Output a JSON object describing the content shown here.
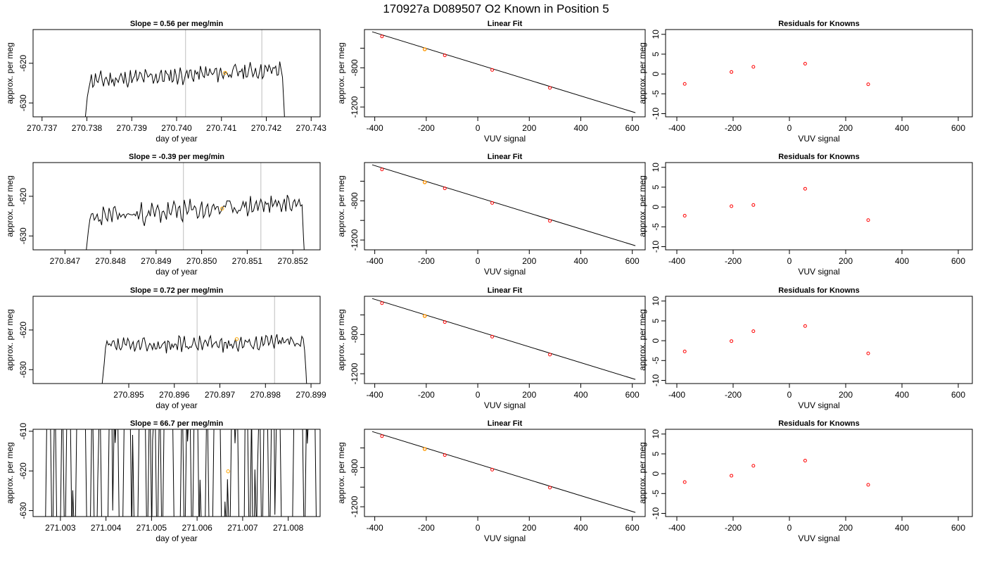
{
  "figure_title": "170927a      D089507   O2 Known in Position  5",
  "colors": {
    "trace": "#000000",
    "orange": "#FFA500",
    "red": "#FF0000",
    "grey": "#BEBEBE"
  },
  "chart_data": [
    {
      "type": "line",
      "title": "Slope =  0.56  per meg/min",
      "xlabel": "day of year",
      "ylabel": "approx. per meg",
      "xlim": [
        270.7368,
        270.7432
      ],
      "ylim": [
        -633.5,
        -611.5
      ],
      "xticks": [
        270.737,
        270.738,
        270.739,
        270.74,
        270.741,
        270.742,
        270.743
      ],
      "xtick_labels": [
        "270.737",
        "270.738",
        "270.739",
        "270.740",
        "270.741",
        "270.742",
        "270.743"
      ],
      "yticks": [
        -630,
        -620
      ],
      "ytick_labels": [
        "-630",
        "-620"
      ],
      "vlines": [
        270.7402,
        270.7419
      ],
      "trace": {
        "x_start": 270.73795,
        "x_end": 270.74245,
        "base": -623,
        "spread": 1.6,
        "trend": 3.0,
        "seed": 11
      },
      "marker": {
        "x": 270.74108,
        "y": -622.4
      }
    },
    {
      "type": "scatter",
      "title": "Linear Fit",
      "xlabel": "VUV signal",
      "ylabel": "approx. per meg",
      "xlim": [
        -440,
        650
      ],
      "ylim": [
        -1300,
        -410
      ],
      "xticks": [
        -400,
        -200,
        0,
        200,
        400,
        600
      ],
      "xtick_labels": [
        "-400",
        "-200",
        "0",
        "200",
        "400",
        "600"
      ],
      "yticks": [
        -1200,
        -1000,
        -800,
        -600
      ],
      "ytick_labels": [
        "-1200",
        "",
        "-800",
        ""
      ],
      "line": [
        [
          -410,
          -433
        ],
        [
          612,
          -1258
        ]
      ],
      "points": [
        [
          -372,
          -480
        ],
        [
          -206,
          -611
        ],
        [
          -128,
          -673
        ],
        [
          56,
          -822
        ],
        [
          280,
          -1005
        ]
      ],
      "orange_points": [
        [
          -206,
          -611
        ]
      ]
    },
    {
      "type": "scatter",
      "title": "Residuals for Knowns",
      "xlabel": "VUV signal",
      "ylabel": "approx. per meg",
      "xlim": [
        -440,
        650
      ],
      "ylim": [
        -10.8,
        11.2
      ],
      "xticks": [
        -400,
        -200,
        0,
        200,
        400,
        600
      ],
      "xtick_labels": [
        "-400",
        "-200",
        "0",
        "200",
        "400",
        "600"
      ],
      "yticks": [
        -10,
        -5,
        0,
        5,
        10
      ],
      "ytick_labels": [
        "-10",
        "-5",
        "0",
        "5",
        "10"
      ],
      "points": [
        [
          -372,
          -2.5
        ],
        [
          -206,
          0.5
        ],
        [
          -128,
          1.8
        ],
        [
          56,
          2.6
        ],
        [
          280,
          -2.6
        ]
      ]
    },
    {
      "type": "line",
      "title": "Slope =  -0.39  per meg/min",
      "xlabel": "day of year",
      "ylabel": "approx. per meg",
      "xlim": [
        270.8463,
        270.8526
      ],
      "ylim": [
        -633.5,
        -611.5
      ],
      "xticks": [
        270.847,
        270.848,
        270.849,
        270.85,
        270.851,
        270.852
      ],
      "xtick_labels": [
        "270.847",
        "270.848",
        "270.849",
        "270.850",
        "270.851",
        "270.852"
      ],
      "yticks": [
        -630,
        -620
      ],
      "ytick_labels": [
        "-630",
        "-620"
      ],
      "vlines": [
        270.8496,
        270.8513
      ],
      "trace": {
        "x_start": 270.84745,
        "x_end": 270.8523,
        "base": -623.5,
        "spread": 2.0,
        "trend": 4.0,
        "seed": 23
      },
      "marker": {
        "x": 270.85045,
        "y": -623.1
      }
    },
    {
      "type": "scatter",
      "title": "Linear Fit",
      "xlabel": "VUV signal",
      "ylabel": "approx. per meg",
      "xlim": [
        -440,
        650
      ],
      "ylim": [
        -1300,
        -410
      ],
      "xticks": [
        -400,
        -200,
        0,
        200,
        400,
        600
      ],
      "xtick_labels": [
        "-400",
        "-200",
        "0",
        "200",
        "400",
        "600"
      ],
      "yticks": [
        -1200,
        -1000,
        -800,
        -600
      ],
      "ytick_labels": [
        "-1200",
        "",
        "-800",
        ""
      ],
      "line": [
        [
          -410,
          -433
        ],
        [
          612,
          -1258
        ]
      ],
      "points": [
        [
          -372,
          -480
        ],
        [
          -206,
          -611
        ],
        [
          -128,
          -673
        ],
        [
          56,
          -822
        ],
        [
          280,
          -1005
        ]
      ],
      "orange_points": [
        [
          -206,
          -611
        ]
      ]
    },
    {
      "type": "scatter",
      "title": "Residuals for Knowns",
      "xlabel": "VUV signal",
      "ylabel": "approx. per meg",
      "xlim": [
        -440,
        650
      ],
      "ylim": [
        -10.8,
        11.2
      ],
      "xticks": [
        -400,
        -200,
        0,
        200,
        400,
        600
      ],
      "xtick_labels": [
        "-400",
        "-200",
        "0",
        "200",
        "400",
        "600"
      ],
      "yticks": [
        -10,
        -5,
        0,
        5,
        10
      ],
      "ytick_labels": [
        "-10",
        "-5",
        "0",
        "5",
        "10"
      ],
      "points": [
        [
          -372,
          -2.2
        ],
        [
          -206,
          0.2
        ],
        [
          -128,
          0.5
        ],
        [
          56,
          4.6
        ],
        [
          280,
          -3.3
        ]
      ]
    },
    {
      "type": "line",
      "title": "Slope =  0.72  per meg/min",
      "xlabel": "day of year",
      "ylabel": "approx. per meg",
      "xlim": [
        270.8929,
        270.8992
      ],
      "ylim": [
        -633.5,
        -611.5
      ],
      "xticks": [
        270.895,
        270.896,
        270.897,
        270.898,
        270.899
      ],
      "xtick_labels": [
        "270.895",
        "270.896",
        "270.897",
        "270.898",
        "270.899"
      ],
      "yticks": [
        -630,
        -620
      ],
      "ytick_labels": [
        "-630",
        "-620"
      ],
      "vlines": [
        270.8965,
        270.8982
      ],
      "trace": {
        "x_start": 270.8944,
        "x_end": 270.89895,
        "base": -623.5,
        "spread": 1.5,
        "trend": 1.5,
        "seed": 37
      },
      "marker": {
        "x": 270.89737,
        "y": -622.3
      }
    },
    {
      "type": "scatter",
      "title": "Linear Fit",
      "xlabel": "VUV signal",
      "ylabel": "approx. per meg",
      "xlim": [
        -440,
        650
      ],
      "ylim": [
        -1300,
        -410
      ],
      "xticks": [
        -400,
        -200,
        0,
        200,
        400,
        600
      ],
      "xtick_labels": [
        "-400",
        "-200",
        "0",
        "200",
        "400",
        "600"
      ],
      "yticks": [
        -1200,
        -1000,
        -800,
        -600
      ],
      "ytick_labels": [
        "-1200",
        "",
        "-800",
        ""
      ],
      "line": [
        [
          -410,
          -433
        ],
        [
          612,
          -1258
        ]
      ],
      "points": [
        [
          -372,
          -480
        ],
        [
          -206,
          -611
        ],
        [
          -128,
          -673
        ],
        [
          56,
          -822
        ],
        [
          280,
          -1005
        ]
      ],
      "orange_points": [
        [
          -206,
          -611
        ]
      ]
    },
    {
      "type": "scatter",
      "title": "Residuals for Knowns",
      "xlabel": "VUV signal",
      "ylabel": "approx. per meg",
      "xlim": [
        -440,
        650
      ],
      "ylim": [
        -10.8,
        11.2
      ],
      "xticks": [
        -400,
        -200,
        0,
        200,
        400,
        600
      ],
      "xtick_labels": [
        "-400",
        "-200",
        "0",
        "200",
        "400",
        "600"
      ],
      "yticks": [
        -10,
        -5,
        0,
        5,
        10
      ],
      "ytick_labels": [
        "-10",
        "-5",
        "0",
        "5",
        "10"
      ],
      "points": [
        [
          -372,
          -2.7
        ],
        [
          -206,
          -0.1
        ],
        [
          -128,
          2.4
        ],
        [
          56,
          3.7
        ],
        [
          280,
          -3.2
        ]
      ]
    },
    {
      "type": "line",
      "title": "Slope =  66.7  per meg/min",
      "xlabel": "day of year",
      "ylabel": "approx. per meg",
      "xlim": [
        271.0024,
        271.0087
      ],
      "ylim": [
        -631.5,
        -609.5
      ],
      "xticks": [
        271.003,
        271.004,
        271.005,
        271.006,
        271.007,
        271.008
      ],
      "xtick_labels": [
        "271.003",
        "271.004",
        "271.005",
        "271.006",
        "271.007",
        "271.008"
      ],
      "yticks": [
        -630,
        -620,
        -610
      ],
      "ytick_labels": [
        "-630",
        "-620",
        "-610"
      ],
      "vlines": [],
      "noise_trace": {
        "x_start": 271.00265,
        "x_end": 271.00862,
        "count": 110,
        "seed": 53
      },
      "marker": {
        "x": 271.00668,
        "y": -620.1
      }
    },
    {
      "type": "scatter",
      "title": "Linear Fit",
      "xlabel": "VUV signal",
      "ylabel": "approx. per meg",
      "xlim": [
        -440,
        650
      ],
      "ylim": [
        -1300,
        -410
      ],
      "xticks": [
        -400,
        -200,
        0,
        200,
        400,
        600
      ],
      "xtick_labels": [
        "-400",
        "-200",
        "0",
        "200",
        "400",
        "600"
      ],
      "yticks": [
        -1200,
        -1000,
        -800,
        -600
      ],
      "ytick_labels": [
        "-1200",
        "",
        "-800",
        ""
      ],
      "line": [
        [
          -410,
          -433
        ],
        [
          612,
          -1258
        ]
      ],
      "points": [
        [
          -372,
          -480
        ],
        [
          -206,
          -611
        ],
        [
          -128,
          -673
        ],
        [
          56,
          -822
        ],
        [
          280,
          -1005
        ]
      ],
      "orange_points": [
        [
          -206,
          -611
        ]
      ]
    },
    {
      "type": "scatter",
      "title": "Residuals for Knowns",
      "xlabel": "VUV signal",
      "ylabel": "approx. per meg",
      "xlim": [
        -440,
        650
      ],
      "ylim": [
        -10.8,
        11.2
      ],
      "xticks": [
        -400,
        -200,
        0,
        200,
        400,
        600
      ],
      "xtick_labels": [
        "-400",
        "-200",
        "0",
        "200",
        "400",
        "600"
      ],
      "yticks": [
        -10,
        -5,
        0,
        5,
        10
      ],
      "ytick_labels": [
        "-10",
        "-5",
        "0",
        "5",
        "10"
      ],
      "points": [
        [
          -372,
          -2.1
        ],
        [
          -206,
          -0.5
        ],
        [
          -128,
          2.0
        ],
        [
          56,
          3.3
        ],
        [
          280,
          -2.8
        ]
      ]
    }
  ]
}
